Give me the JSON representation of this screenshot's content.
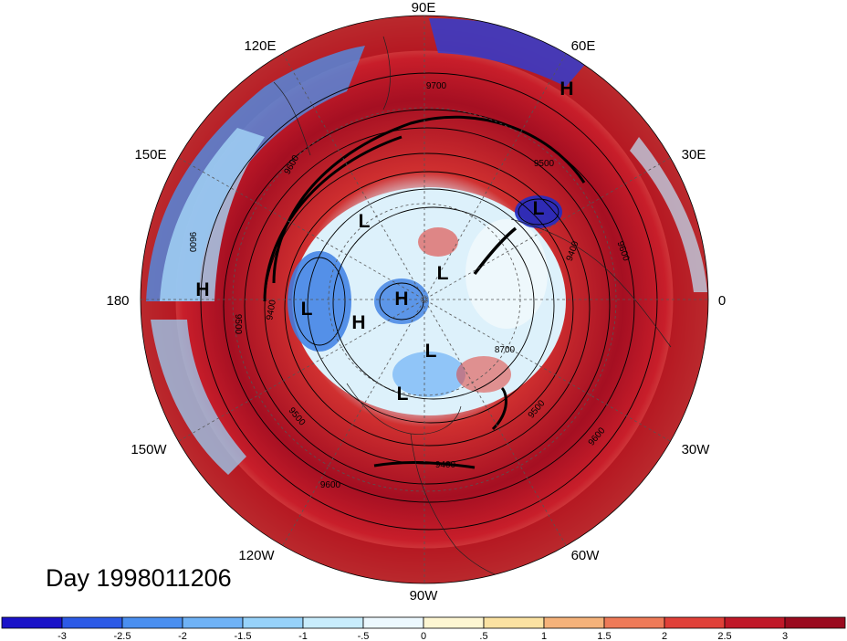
{
  "title": "Day 1998011206",
  "map": {
    "projection": "north-polar-stereographic",
    "longitude_labels": [
      "90E",
      "60E",
      "30E",
      "0",
      "30W",
      "60W",
      "90W",
      "120W",
      "150W",
      "180",
      "150E",
      "120E"
    ],
    "contour_labels": [
      "9700",
      "9600",
      "9500",
      "9400",
      "9600",
      "9400",
      "8700",
      "9500",
      "9400",
      "9600",
      "9500",
      "9600",
      "9600",
      "9500"
    ],
    "highs_lows": [
      {
        "type": "H",
        "text": "H"
      },
      {
        "type": "L",
        "text": "L"
      },
      {
        "type": "H",
        "text": "H"
      },
      {
        "type": "L",
        "text": "L"
      },
      {
        "type": "L",
        "text": "L"
      },
      {
        "type": "H",
        "text": "H"
      },
      {
        "type": "H",
        "text": "H"
      },
      {
        "type": "L",
        "text": "L"
      },
      {
        "type": "L",
        "text": "L"
      },
      {
        "type": "L",
        "text": "L"
      }
    ]
  },
  "colorbar": {
    "ticks": [
      "-3",
      "-2.5",
      "-2",
      "-1.5",
      "-1",
      "-.5",
      "0",
      ".5",
      "1",
      "1.5",
      "2",
      "2.5",
      "3"
    ],
    "colors": [
      "#1a12c8",
      "#2c5ae6",
      "#4a8ff0",
      "#6fb2f6",
      "#97d2fa",
      "#c8ecfc",
      "#ecf8fe",
      "#fdf6d2",
      "#fbe2a2",
      "#f5b27a",
      "#ee7a58",
      "#e04038",
      "#c01828",
      "#9a0a1e"
    ]
  }
}
